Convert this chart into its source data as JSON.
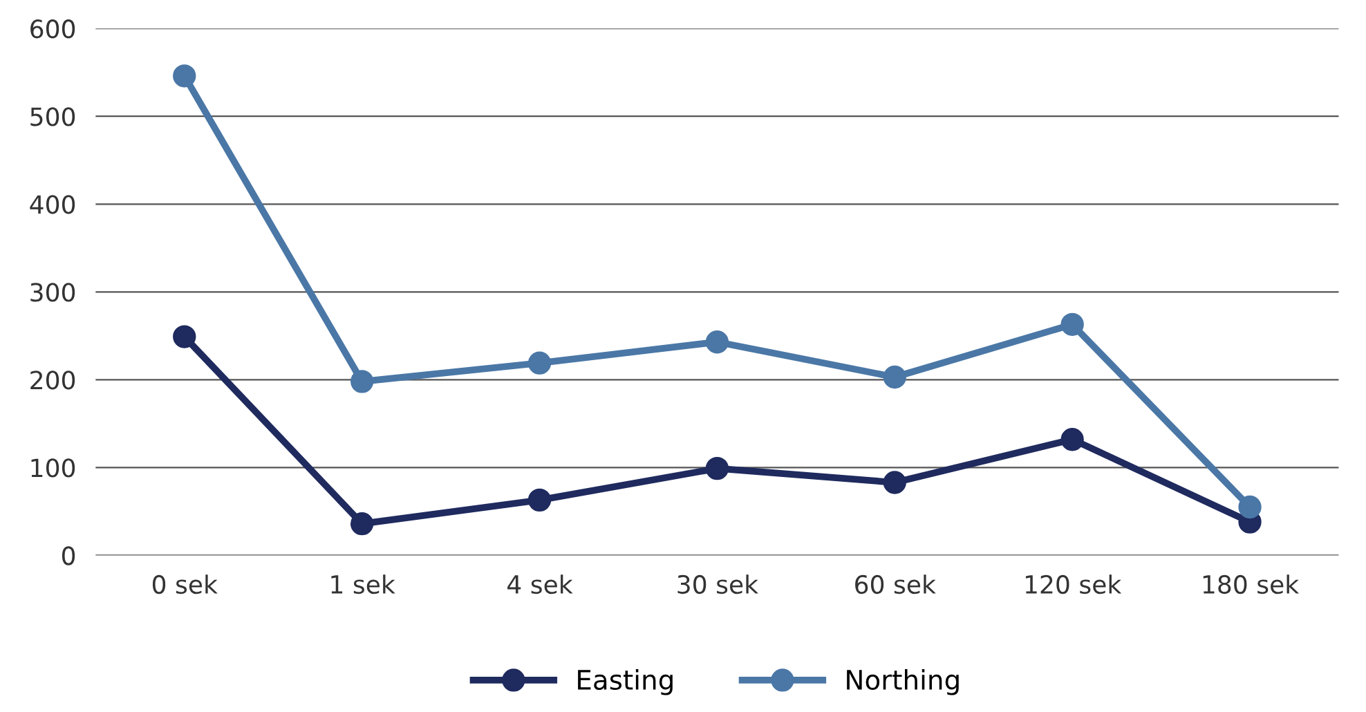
{
  "chart_data": {
    "type": "line",
    "categories": [
      "0 sek",
      "1 sek",
      "4 sek",
      "30 sek",
      "60 sek",
      "120 sek",
      "180 sek"
    ],
    "series": [
      {
        "name": "Easting",
        "color": "#1f2a5e",
        "values": [
          249,
          36,
          63,
          99,
          83,
          132,
          38
        ]
      },
      {
        "name": "Northing",
        "color": "#4a77a6",
        "values": [
          546,
          198,
          219,
          243,
          203,
          263,
          55
        ]
      }
    ],
    "ylim": [
      0,
      600
    ],
    "yticks": [
      0,
      100,
      200,
      300,
      400,
      500,
      600
    ],
    "grid": "y",
    "legend": "bottom",
    "marker": "circle",
    "line_style": "solid"
  }
}
